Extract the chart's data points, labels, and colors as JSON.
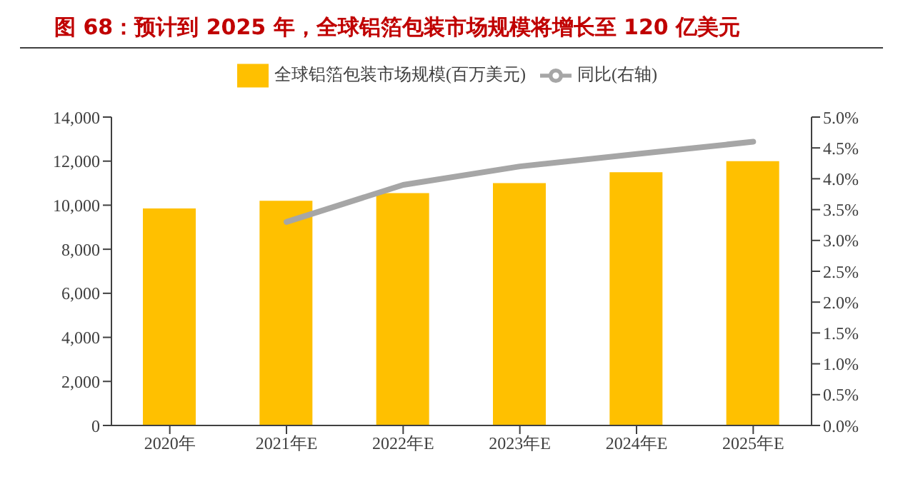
{
  "chart_data": {
    "type": "bar",
    "title": "图 68：预计到 2025 年，全球铝箔包装市场规模将增长至 120 亿美元",
    "categories": [
      "2020年",
      "2021年E",
      "2022年E",
      "2023年E",
      "2024年E",
      "2025年E"
    ],
    "series": [
      {
        "name": "全球铝箔包装市场规模(百万美元)",
        "color": "#ffc000",
        "values": [
          9850,
          10200,
          10550,
          11000,
          11500,
          12000
        ]
      },
      {
        "name": "同比(右轴)",
        "type": "line",
        "axis": "y2",
        "color": "#a6a6a6",
        "values": [
          null,
          3.3,
          3.9,
          4.2,
          4.4,
          4.6
        ]
      }
    ],
    "ylim": [
      0,
      14000
    ],
    "yticks": [
      {
        "value": 0,
        "label": "0"
      },
      {
        "value": 2000,
        "label": "2,000"
      },
      {
        "value": 4000,
        "label": "4,000"
      },
      {
        "value": 6000,
        "label": "6,000"
      },
      {
        "value": 8000,
        "label": "8,000"
      },
      {
        "value": 10000,
        "label": "10,000"
      },
      {
        "value": 12000,
        "label": "12,000"
      },
      {
        "value": 14000,
        "label": "14,000"
      }
    ],
    "y2lim": [
      0,
      5
    ],
    "y2ticks": [
      {
        "value": 0,
        "label": "0.0%"
      },
      {
        "value": 0.5,
        "label": "0.5%"
      },
      {
        "value": 1,
        "label": "1.0%"
      },
      {
        "value": 1.5,
        "label": "1.5%"
      },
      {
        "value": 2,
        "label": "2.0%"
      },
      {
        "value": 2.5,
        "label": "2.5%"
      },
      {
        "value": 3,
        "label": "3.0%"
      },
      {
        "value": 3.5,
        "label": "3.5%"
      },
      {
        "value": 4,
        "label": "4.0%"
      },
      {
        "value": 4.5,
        "label": "4.5%"
      },
      {
        "value": 5,
        "label": "5.0%"
      }
    ],
    "legend": "top",
    "grid": false
  }
}
